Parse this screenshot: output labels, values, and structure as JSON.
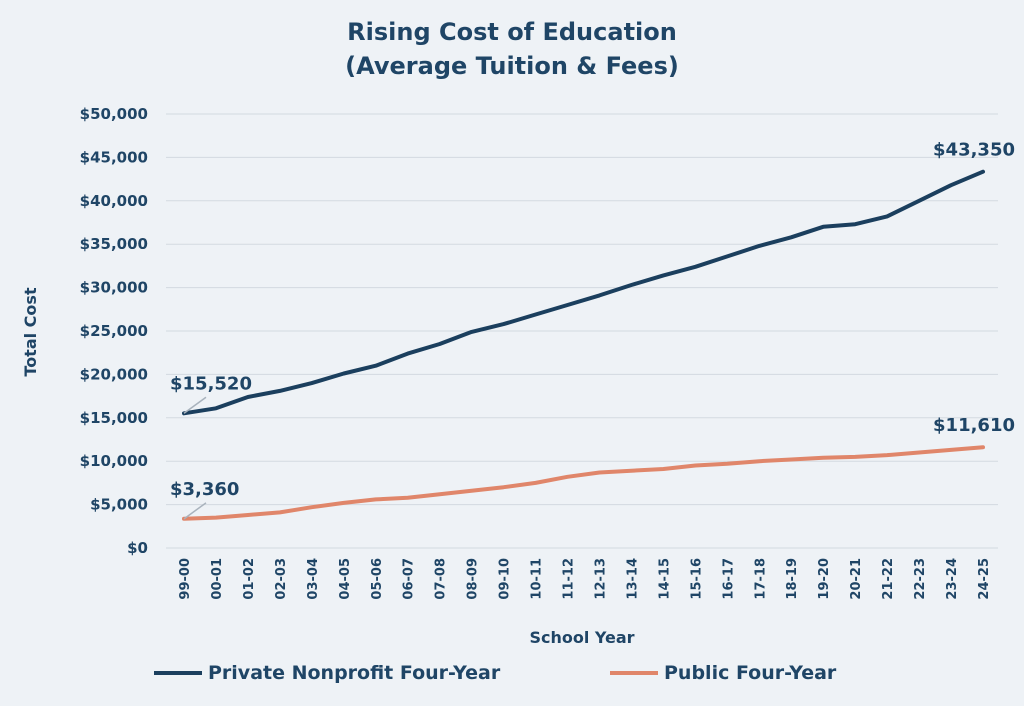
{
  "chart_data": {
    "type": "line",
    "title": [
      "Rising Cost of Education",
      "(Average Tuition & Fees)"
    ],
    "xlabel": "School Year",
    "ylabel": "Total Cost",
    "ylim": [
      0,
      50000
    ],
    "ytick_values": [
      0,
      5000,
      10000,
      15000,
      20000,
      25000,
      30000,
      35000,
      40000,
      45000,
      50000
    ],
    "ytick_labels": [
      "$0",
      "$5,000",
      "$10,000",
      "$15,000",
      "$20,000",
      "$25,000",
      "$30,000",
      "$35,000",
      "$40,000",
      "$45,000",
      "$50,000"
    ],
    "categories": [
      "99-00",
      "00-01",
      "01-02",
      "02-03",
      "03-04",
      "04-05",
      "05-06",
      "06-07",
      "07-08",
      "08-09",
      "09-10",
      "10-11",
      "11-12",
      "12-13",
      "13-14",
      "14-15",
      "15-16",
      "16-17",
      "17-18",
      "18-19",
      "19-20",
      "20-21",
      "21-22",
      "22-23",
      "23-24",
      "24-25"
    ],
    "grid": true,
    "legend_position": "bottom",
    "series": [
      {
        "name": "Private Nonprofit Four-Year",
        "color": "#1b3f5e",
        "values": [
          15520,
          16100,
          17400,
          18100,
          19000,
          20100,
          21000,
          22400,
          23500,
          24900,
          25800,
          26900,
          28000,
          29100,
          30300,
          31400,
          32400,
          33600,
          34800,
          35800,
          37000,
          37300,
          38200,
          40000,
          41800,
          43350
        ]
      },
      {
        "name": "Public Four-Year",
        "color": "#e0866a",
        "values": [
          3360,
          3500,
          3800,
          4100,
          4700,
          5200,
          5600,
          5800,
          6200,
          6600,
          7000,
          7500,
          8200,
          8700,
          8900,
          9100,
          9500,
          9700,
          10000,
          10200,
          10400,
          10500,
          10700,
          11000,
          11300,
          11610
        ]
      }
    ],
    "annotations": [
      {
        "series": 0,
        "index": 0,
        "text": "$15,520"
      },
      {
        "series": 0,
        "index": 25,
        "text": "$43,350"
      },
      {
        "series": 1,
        "index": 0,
        "text": "$3,360"
      },
      {
        "series": 1,
        "index": 25,
        "text": "$11,610"
      }
    ]
  }
}
